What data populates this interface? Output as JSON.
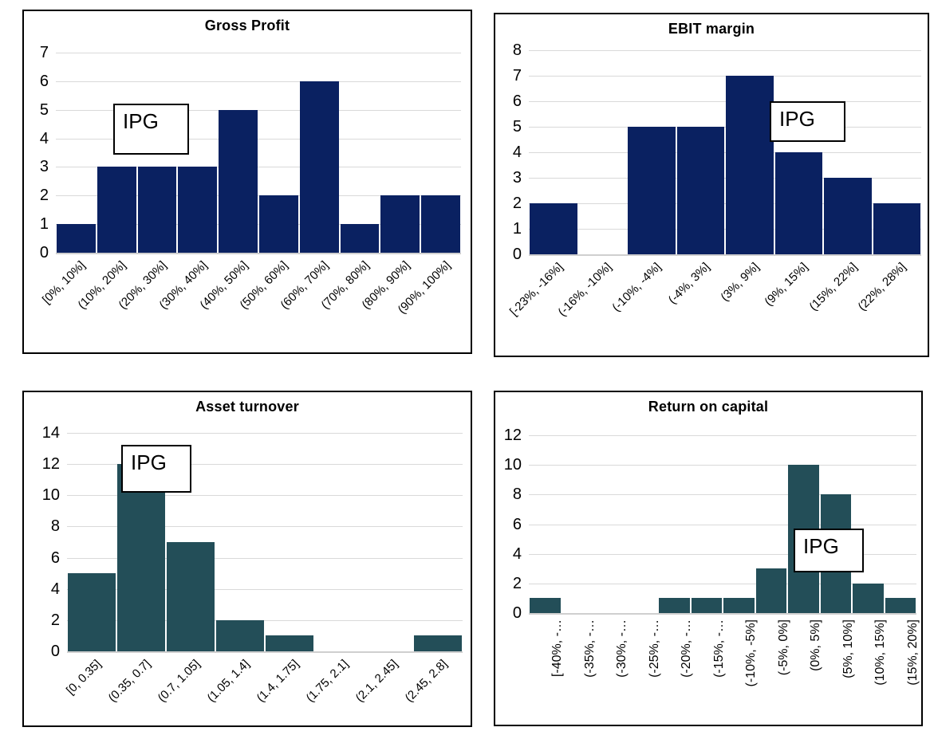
{
  "style": {
    "background": "#FFFFFF",
    "grid_color": "#D9D9D9",
    "axis_color": "#CFCFCF",
    "frame_color": "#000000",
    "navy_bar_color": "#0A2161",
    "teal_bar_color": "#234E58"
  },
  "chart_data": [
    {
      "type": "bar",
      "title": "Gross Profit",
      "annotation": "IPG",
      "categories": [
        "[0%, 10%]",
        "(10%, 20%]",
        "(20%, 30%]",
        "(30%, 40%]",
        "(40%, 50%]",
        "(50%, 60%]",
        "(60%, 70%]",
        "(70%, 80%]",
        "(80%, 90%]",
        "(90%, 100%]"
      ],
      "values": [
        1,
        3,
        3,
        3,
        5,
        2,
        6,
        1,
        2,
        2
      ],
      "xlabel": "",
      "ylabel": "",
      "ylim": [
        0,
        7
      ],
      "y_step": 1,
      "y_tick_labels": [
        "0",
        "1",
        "2",
        "3",
        "4",
        "5",
        "6",
        "7"
      ],
      "bar_color": "#0A2161",
      "grid": "horizontal",
      "legend_position": "none"
    },
    {
      "type": "bar",
      "title": "EBIT margin",
      "annotation": "IPG",
      "categories": [
        "[-23%, -16%]",
        "(-16%, -10%]",
        "(-10%, -4%]",
        "(-4%, 3%]",
        "(3%, 9%]",
        "(9%, 15%]",
        "(15%, 22%]",
        "(22%, 28%]"
      ],
      "values": [
        2,
        0,
        5,
        5,
        7,
        4,
        3,
        2
      ],
      "xlabel": "",
      "ylabel": "",
      "ylim": [
        0,
        8
      ],
      "y_step": 1,
      "y_tick_labels": [
        "0",
        "1",
        "2",
        "3",
        "4",
        "5",
        "6",
        "7",
        "8"
      ],
      "bar_color": "#0A2161",
      "grid": "horizontal",
      "legend_position": "none"
    },
    {
      "type": "bar",
      "title": "Asset turnover",
      "annotation": "IPG",
      "categories": [
        "[0, 0.35]",
        "(0.35, 0.7]",
        "(0.7, 1.05]",
        "(1.05, 1.4]",
        "(1.4, 1.75]",
        "(1.75, 2.1]",
        "(2.1, 2.45]",
        "(2.45, 2.8]"
      ],
      "values": [
        5,
        12,
        7,
        2,
        1,
        0,
        0,
        1
      ],
      "xlabel": "",
      "ylabel": "",
      "ylim": [
        0,
        14
      ],
      "y_step": 2,
      "y_tick_labels": [
        "0",
        "2",
        "4",
        "6",
        "8",
        "10",
        "12",
        "14"
      ],
      "bar_color": "#234E58",
      "grid": "horizontal",
      "legend_position": "none"
    },
    {
      "type": "bar",
      "title": "Return on capital",
      "annotation": "IPG",
      "categories": [
        "[-40%, -…",
        "(-35%, -…",
        "(-30%, -…",
        "(-25%, -…",
        "(-20%, -…",
        "(-15%, -…",
        "(-10%, -5%]",
        "(-5%, 0%]",
        "(0%, 5%]",
        "(5%, 10%]",
        "(10%, 15%]",
        "(15%, 20%]"
      ],
      "values": [
        1,
        0,
        0,
        0,
        1,
        1,
        1,
        3,
        10,
        8,
        2,
        1
      ],
      "xlabel": "",
      "ylabel": "",
      "ylim": [
        0,
        12
      ],
      "y_step": 2,
      "y_tick_labels": [
        "0",
        "2",
        "4",
        "6",
        "8",
        "10",
        "12"
      ],
      "bar_color": "#234E58",
      "grid": "horizontal",
      "legend_position": "none"
    }
  ]
}
